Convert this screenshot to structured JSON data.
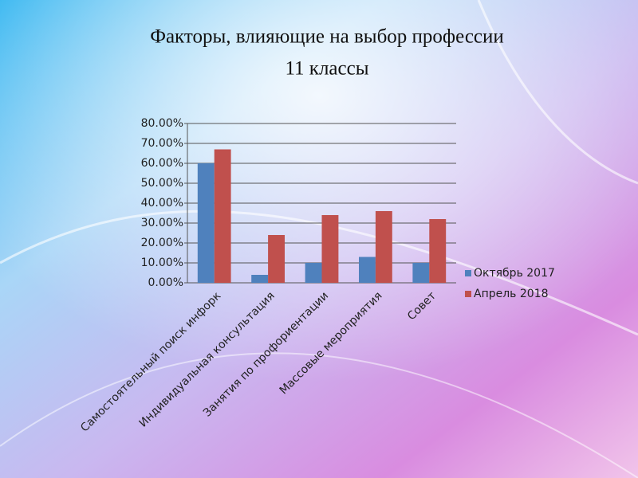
{
  "chart_data": {
    "type": "bar",
    "title": "Факторы, влияющие на выбор профессии",
    "subtitle": "11 классы",
    "categories": [
      "Самостоятельный поиск инфорк",
      "Индивидуальная консультация",
      "Занятия по профориентации",
      "Массовые мероприятия",
      "Совет"
    ],
    "series": [
      {
        "name": "Октябрь 2017",
        "color": "#4f81bd",
        "values": [
          60,
          4,
          10,
          13,
          10
        ]
      },
      {
        "name": "Апрель 2018",
        "color": "#c0504d",
        "values": [
          67,
          24,
          34,
          36,
          32
        ]
      }
    ],
    "ylim": [
      0,
      80
    ],
    "yticks": [
      {
        "value": 0,
        "label": "0.00%"
      },
      {
        "value": 10,
        "label": "10.00%"
      },
      {
        "value": 20,
        "label": "20.00%"
      },
      {
        "value": 30,
        "label": "30.00%"
      },
      {
        "value": 40,
        "label": "40.00%"
      },
      {
        "value": 50,
        "label": "50.00%"
      },
      {
        "value": 60,
        "label": "60.00%"
      },
      {
        "value": 70,
        "label": "70.00%"
      },
      {
        "value": 80,
        "label": "80.00%"
      }
    ],
    "grid": true,
    "legend": "right"
  }
}
